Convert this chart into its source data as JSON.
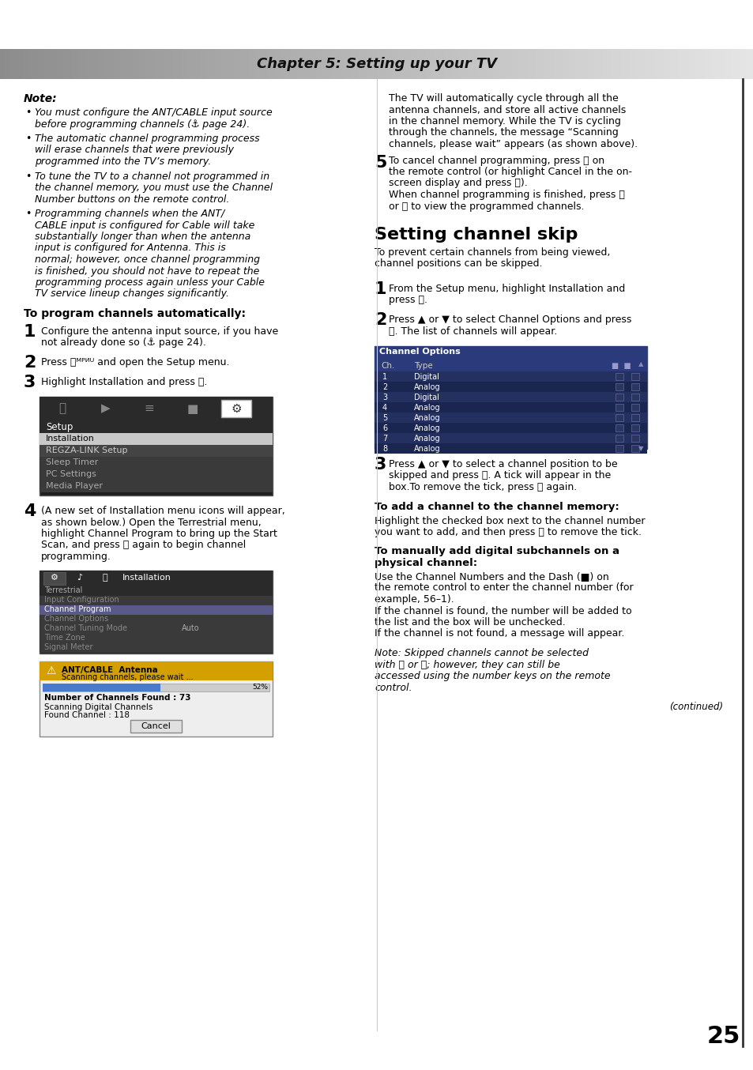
{
  "title": "Chapter 5: Setting up your TV",
  "page_number": "25",
  "bg_color": "#ffffff",
  "note_label": "Note:",
  "section1_title": "To program channels automatically:",
  "section2_title": "Setting channel skip",
  "add_channel_title": "To add a channel to the channel memory:",
  "digital_title1": "To manually add digital subchannels on a",
  "digital_title2": "physical channel:",
  "continued_text": "(continued)",
  "channels": [
    [
      1,
      "Digital"
    ],
    [
      2,
      "Analog"
    ],
    [
      3,
      "Digital"
    ],
    [
      4,
      "Analog"
    ],
    [
      5,
      "Analog"
    ],
    [
      6,
      "Analog"
    ],
    [
      7,
      "Analog"
    ],
    [
      8,
      "Analog"
    ]
  ],
  "menu_items_setup": [
    "Installation",
    "REGZA-LINK Setup",
    "Sleep Timer",
    "PC Settings",
    "Media Player"
  ],
  "menu_items_install": [
    "Terrestrial",
    "Input Configuration",
    "Channel Program",
    "Channel Options",
    "Channel Tuning Mode",
    "Time Zone",
    "Signal Meter"
  ]
}
